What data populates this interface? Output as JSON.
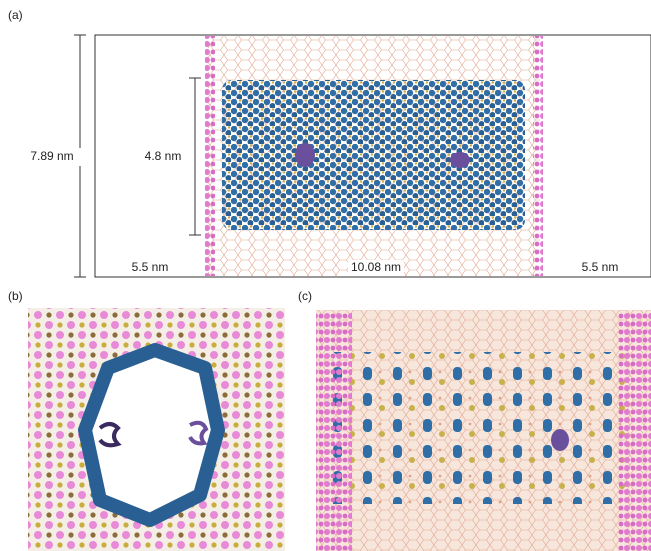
{
  "panels": [
    {
      "label": "(a)",
      "dimensions": {
        "height": "7.89 nm",
        "film": "4.8 nm",
        "left_gap": "5.5 nm",
        "width": "10.08 nm",
        "right_gap": "5.5 nm"
      }
    },
    {
      "label": "(b)"
    },
    {
      "label": "(c)"
    }
  ]
}
